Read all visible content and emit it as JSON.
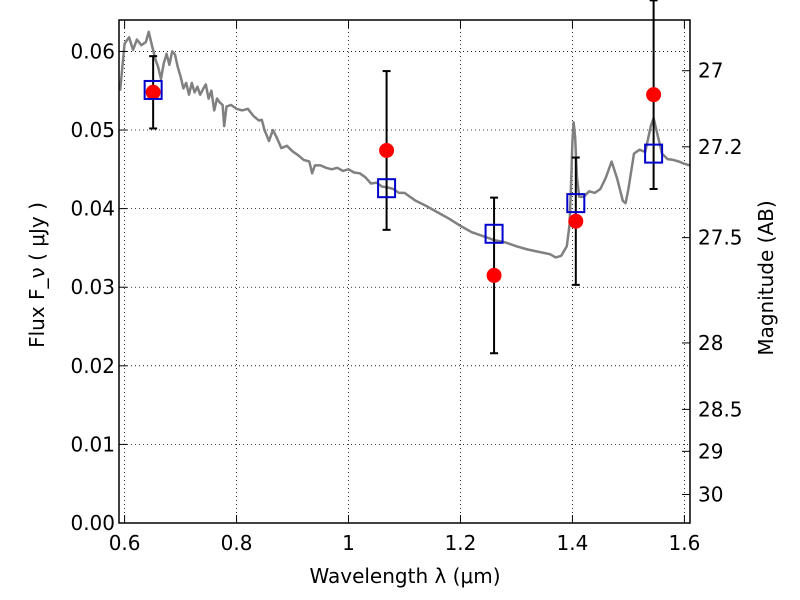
{
  "chart_data": {
    "type": "scatter",
    "xlabel": "Wavelength  λ (μm)",
    "ylabel": "Flux  F_ν  ( μJy )",
    "ylabel_right": "Magnitude (AB)",
    "xlim": [
      0.59,
      1.61
    ],
    "ylim": [
      0.0,
      0.064
    ],
    "grid": true,
    "x_ticks": [
      0.6,
      0.8,
      1.0,
      1.2,
      1.4,
      1.6
    ],
    "x_tick_labels": [
      "0.6",
      "0.8",
      "1",
      "1.2",
      "1.4",
      "1.6"
    ],
    "y_ticks": [
      0.0,
      0.01,
      0.02,
      0.03,
      0.04,
      0.05,
      0.06
    ],
    "y_tick_labels": [
      "0.00",
      "0.01",
      "0.02",
      "0.03",
      "0.04",
      "0.05",
      "0.06"
    ],
    "right_ticks": [
      {
        "mag": 27,
        "label": "27"
      },
      {
        "mag": 27.2,
        "label": "27.2"
      },
      {
        "mag": 27.5,
        "label": "27.5"
      },
      {
        "mag": 28,
        "label": "28"
      },
      {
        "mag": 28.5,
        "label": "28.5"
      },
      {
        "mag": 29,
        "label": "29"
      },
      {
        "mag": 30,
        "label": "30"
      }
    ],
    "series": [
      {
        "kind": "model-spectrum",
        "color": "#808080",
        "points": [
          [
            0.592,
            0.055
          ],
          [
            0.6,
            0.061
          ],
          [
            0.608,
            0.0618
          ],
          [
            0.615,
            0.0602
          ],
          [
            0.622,
            0.0615
          ],
          [
            0.63,
            0.0608
          ],
          [
            0.638,
            0.0612
          ],
          [
            0.643,
            0.0625
          ],
          [
            0.648,
            0.061
          ],
          [
            0.655,
            0.059
          ],
          [
            0.66,
            0.058
          ],
          [
            0.665,
            0.0565
          ],
          [
            0.67,
            0.0585
          ],
          [
            0.675,
            0.0597
          ],
          [
            0.68,
            0.0583
          ],
          [
            0.685,
            0.06
          ],
          [
            0.69,
            0.0596
          ],
          [
            0.695,
            0.058
          ],
          [
            0.7,
            0.0568
          ],
          [
            0.705,
            0.0553
          ],
          [
            0.71,
            0.056
          ],
          [
            0.715,
            0.0545
          ],
          [
            0.72,
            0.056
          ],
          [
            0.725,
            0.0548
          ],
          [
            0.73,
            0.0555
          ],
          [
            0.735,
            0.0545
          ],
          [
            0.74,
            0.0552
          ],
          [
            0.745,
            0.0558
          ],
          [
            0.75,
            0.054
          ],
          [
            0.755,
            0.055
          ],
          [
            0.76,
            0.0525
          ],
          [
            0.765,
            0.054
          ],
          [
            0.77,
            0.0535
          ],
          [
            0.775,
            0.0532
          ],
          [
            0.778,
            0.0505
          ],
          [
            0.782,
            0.053
          ],
          [
            0.79,
            0.0532
          ],
          [
            0.8,
            0.0527
          ],
          [
            0.81,
            0.0525
          ],
          [
            0.82,
            0.0527
          ],
          [
            0.83,
            0.0518
          ],
          [
            0.84,
            0.0512
          ],
          [
            0.845,
            0.0513
          ],
          [
            0.85,
            0.05
          ],
          [
            0.858,
            0.0486
          ],
          [
            0.865,
            0.05
          ],
          [
            0.872,
            0.049
          ],
          [
            0.88,
            0.0477
          ],
          [
            0.89,
            0.048
          ],
          [
            0.9,
            0.0473
          ],
          [
            0.91,
            0.0468
          ],
          [
            0.92,
            0.0462
          ],
          [
            0.93,
            0.046
          ],
          [
            0.935,
            0.0445
          ],
          [
            0.94,
            0.0455
          ],
          [
            0.95,
            0.0455
          ],
          [
            0.96,
            0.0452
          ],
          [
            0.97,
            0.045
          ],
          [
            0.98,
            0.0452
          ],
          [
            0.99,
            0.0448
          ],
          [
            1.0,
            0.045
          ],
          [
            1.01,
            0.0446
          ],
          [
            1.02,
            0.0445
          ],
          [
            1.03,
            0.044
          ],
          [
            1.04,
            0.0432
          ],
          [
            1.05,
            0.0433
          ],
          [
            1.06,
            0.0428
          ],
          [
            1.07,
            0.0427
          ],
          [
            1.08,
            0.0425
          ],
          [
            1.09,
            0.042
          ],
          [
            1.1,
            0.042
          ],
          [
            1.12,
            0.041
          ],
          [
            1.14,
            0.0403
          ],
          [
            1.16,
            0.0395
          ],
          [
            1.18,
            0.0387
          ],
          [
            1.2,
            0.0378
          ],
          [
            1.22,
            0.037
          ],
          [
            1.24,
            0.0365
          ],
          [
            1.26,
            0.036
          ],
          [
            1.28,
            0.0357
          ],
          [
            1.3,
            0.0352
          ],
          [
            1.32,
            0.0348
          ],
          [
            1.34,
            0.0345
          ],
          [
            1.36,
            0.0342
          ],
          [
            1.37,
            0.0338
          ],
          [
            1.38,
            0.034
          ],
          [
            1.39,
            0.0352
          ],
          [
            1.395,
            0.038
          ],
          [
            1.398,
            0.044
          ],
          [
            1.4,
            0.0485
          ],
          [
            1.402,
            0.051
          ],
          [
            1.405,
            0.049
          ],
          [
            1.408,
            0.044
          ],
          [
            1.412,
            0.0415
          ],
          [
            1.42,
            0.0415
          ],
          [
            1.43,
            0.0422
          ],
          [
            1.44,
            0.042
          ],
          [
            1.45,
            0.0425
          ],
          [
            1.46,
            0.044
          ],
          [
            1.47,
            0.046
          ],
          [
            1.48,
            0.0438
          ],
          [
            1.49,
            0.041
          ],
          [
            1.495,
            0.0407
          ],
          [
            1.5,
            0.0425
          ],
          [
            1.51,
            0.047
          ],
          [
            1.52,
            0.0475
          ],
          [
            1.53,
            0.0472
          ],
          [
            1.54,
            0.0505
          ],
          [
            1.545,
            0.0515
          ],
          [
            1.55,
            0.05
          ],
          [
            1.56,
            0.047
          ],
          [
            1.57,
            0.0463
          ],
          [
            1.58,
            0.0462
          ],
          [
            1.59,
            0.046
          ],
          [
            1.6,
            0.0457
          ],
          [
            1.61,
            0.0455
          ]
        ]
      },
      {
        "kind": "observed",
        "marker": "circle",
        "color": "#ff0000",
        "points": [
          {
            "x": 0.651,
            "y": 0.0548,
            "yerr": 0.0046
          },
          {
            "x": 1.068,
            "y": 0.0474,
            "yerr": 0.0101
          },
          {
            "x": 1.26,
            "y": 0.0315,
            "yerr": 0.0099
          },
          {
            "x": 1.406,
            "y": 0.0384,
            "yerr": 0.0081
          },
          {
            "x": 1.545,
            "y": 0.0545,
            "yerr": 0.012
          }
        ]
      },
      {
        "kind": "model-bandpass",
        "marker": "square",
        "color": "#0000cc",
        "points": [
          {
            "x": 0.651,
            "y": 0.0551
          },
          {
            "x": 1.068,
            "y": 0.0426
          },
          {
            "x": 1.26,
            "y": 0.0368
          },
          {
            "x": 1.406,
            "y": 0.0407
          },
          {
            "x": 1.545,
            "y": 0.047
          }
        ]
      }
    ]
  }
}
